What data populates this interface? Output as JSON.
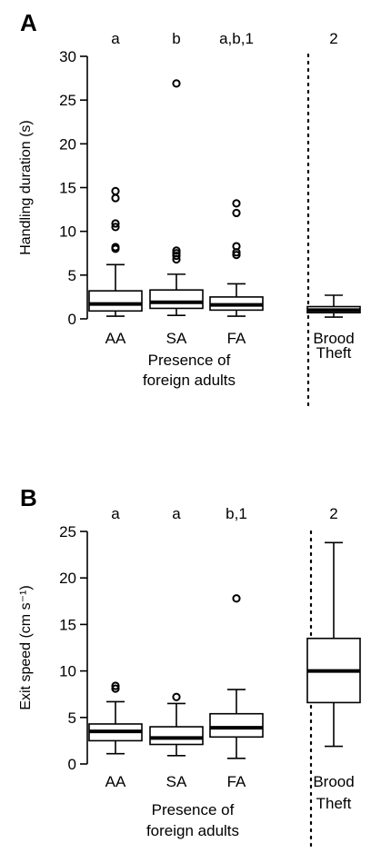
{
  "chart_data": [
    {
      "type": "box",
      "panel_label": "A",
      "ylabel": "Handling duration (s)",
      "ylim": [
        0,
        30
      ],
      "yticks": [
        0,
        5,
        10,
        15,
        20,
        25,
        30
      ],
      "xlabel_lines": [
        "Presence of",
        "foreign adults"
      ],
      "categories": [
        "AA",
        "SA",
        "FA",
        "Brood Theft"
      ],
      "category_lines": [
        [
          "AA"
        ],
        [
          "SA"
        ],
        [
          "FA"
        ],
        [
          "Brood",
          "Theft"
        ]
      ],
      "letters": [
        "a",
        "b",
        "a,b,1",
        "2"
      ],
      "boxes": [
        {
          "whisker_low": 0.3,
          "q1": 0.9,
          "median": 1.7,
          "q3": 3.2,
          "whisker_high": 6.2,
          "outliers": [
            8.0,
            8.2,
            10.5,
            10.9,
            13.8,
            14.6
          ]
        },
        {
          "whisker_low": 0.4,
          "q1": 1.2,
          "median": 1.9,
          "q3": 3.3,
          "whisker_high": 5.1,
          "outliers": [
            6.8,
            7.2,
            7.5,
            7.8,
            26.9
          ]
        },
        {
          "whisker_low": 0.3,
          "q1": 1.0,
          "median": 1.6,
          "q3": 2.5,
          "whisker_high": 4.0,
          "outliers": [
            7.3,
            7.6,
            8.3,
            12.1,
            13.2
          ]
        },
        {
          "whisker_low": 0.2,
          "q1": 0.7,
          "median": 1.0,
          "q3": 1.4,
          "whisker_high": 2.7,
          "outliers": []
        }
      ]
    },
    {
      "type": "box",
      "panel_label": "B",
      "ylabel": "Exit speed (cm s⁻¹)",
      "ylim": [
        0,
        25
      ],
      "yticks": [
        0,
        5,
        10,
        15,
        20,
        25
      ],
      "xlabel_lines": [
        "Presence of",
        "foreign adults"
      ],
      "categories": [
        "AA",
        "SA",
        "FA",
        "Brood Theft"
      ],
      "category_lines": [
        [
          "AA"
        ],
        [
          "SA"
        ],
        [
          "FA"
        ],
        [
          "Brood",
          "Theft"
        ]
      ],
      "letters": [
        "a",
        "a",
        "b,1",
        "2"
      ],
      "boxes": [
        {
          "whisker_low": 1.1,
          "q1": 2.5,
          "median": 3.5,
          "q3": 4.3,
          "whisker_high": 6.7,
          "outliers": [
            8.1,
            8.4
          ]
        },
        {
          "whisker_low": 0.9,
          "q1": 2.1,
          "median": 2.8,
          "q3": 4.0,
          "whisker_high": 6.5,
          "outliers": [
            7.2
          ]
        },
        {
          "whisker_low": 0.6,
          "q1": 2.9,
          "median": 3.9,
          "q3": 5.4,
          "whisker_high": 8.0,
          "outliers": [
            17.8
          ]
        },
        {
          "whisker_low": 1.9,
          "q1": 6.6,
          "median": 10.0,
          "q3": 13.5,
          "whisker_high": 23.8,
          "outliers": []
        }
      ]
    }
  ]
}
